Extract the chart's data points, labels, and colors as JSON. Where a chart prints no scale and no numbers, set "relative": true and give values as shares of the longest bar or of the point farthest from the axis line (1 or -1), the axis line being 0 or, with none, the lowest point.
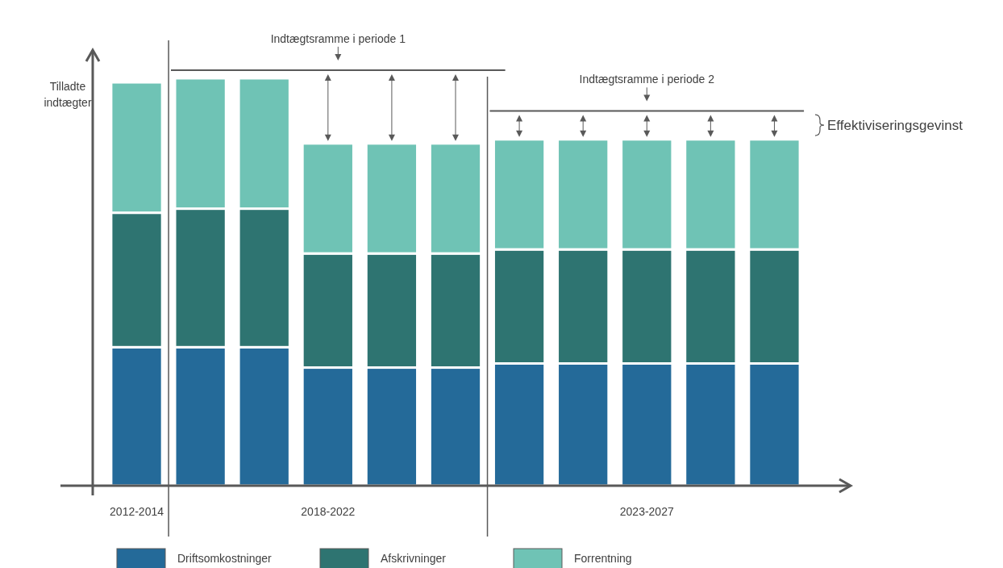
{
  "chart_data": {
    "type": "bar",
    "stacked": true,
    "relative": true,
    "categories": [
      "2012-2014",
      null,
      null,
      "2018-2022",
      null,
      null,
      null,
      null,
      "2023-2027",
      null,
      null
    ],
    "series": [
      {
        "name": "Driftsomkostninger",
        "color": "#246a99",
        "values": [
          0.34,
          0.34,
          0.34,
          0.29,
          0.29,
          0.29,
          0.3,
          0.3,
          0.3,
          0.3,
          0.3
        ]
      },
      {
        "name": "Afskrivninger",
        "color": "#2e7471",
        "values": [
          0.33,
          0.34,
          0.34,
          0.28,
          0.28,
          0.28,
          0.28,
          0.28,
          0.28,
          0.28,
          0.28
        ]
      },
      {
        "name": "Forrentning",
        "color": "#6fc3b5",
        "values": [
          0.32,
          0.32,
          0.32,
          0.27,
          0.27,
          0.27,
          0.27,
          0.27,
          0.27,
          0.27,
          0.27
        ]
      }
    ],
    "ref_lines": [
      {
        "axis": "y",
        "value": 1.02,
        "label": "Indtægtsramme i periode 1"
      },
      {
        "axis": "y",
        "value": 0.92,
        "label": "Indtægtsramme i periode 2"
      }
    ],
    "annotations": [
      "Tilladte indtægter",
      "Effektiviseringsgevinst"
    ],
    "legend": "bottom"
  }
}
